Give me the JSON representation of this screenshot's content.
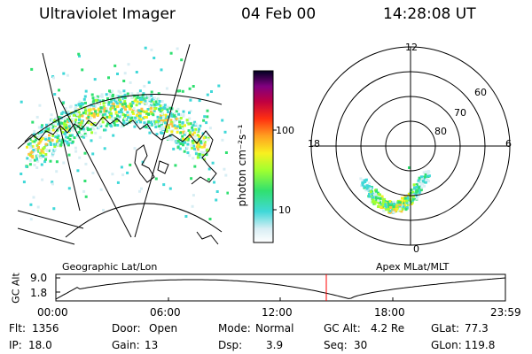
{
  "header": {
    "title": "Ultraviolet Imager",
    "date": "04 Feb 00",
    "time": "14:28:08 UT"
  },
  "colorbar": {
    "label": "photon cm⁻²s⁻¹",
    "ticks": [
      "100",
      "10"
    ]
  },
  "panels": {
    "left_caption": "Geographic Lat/Lon",
    "right_caption": "Apex  MLat/MLT"
  },
  "polar": {
    "mlt_labels": {
      "top": "12",
      "left": "18",
      "right": "6",
      "bottom": "0"
    },
    "lat_labels": [
      "60",
      "70",
      "80"
    ]
  },
  "altitude_plot": {
    "ylabel": "GC Alt",
    "y_ticks": [
      "9.0",
      "1.8"
    ],
    "x_ticks": [
      "00:00",
      "06:00",
      "12:00",
      "18:00",
      "23:59"
    ]
  },
  "info": {
    "flt_label": "Flt:",
    "flt_value": "1356",
    "ip_label": "IP:",
    "ip_value": "18.0",
    "door_label": "Door:",
    "door_value": "Open",
    "gain_label": "Gain:",
    "gain_value": "13",
    "mode_label": "Mode:",
    "mode_value": "Normal",
    "dsp_label": "Dsp:",
    "dsp_value": "3.9",
    "gcalt_label": "GC Alt:",
    "gcalt_value": "4.2 Re",
    "seq_label": "Seq:",
    "seq_value": "30",
    "glat_label": "GLat:",
    "glat_value": "77.3",
    "glon_label": "GLon:",
    "glon_value": "119.8"
  },
  "colors": {
    "background": "#ffffff",
    "marker": "#ff0000"
  }
}
